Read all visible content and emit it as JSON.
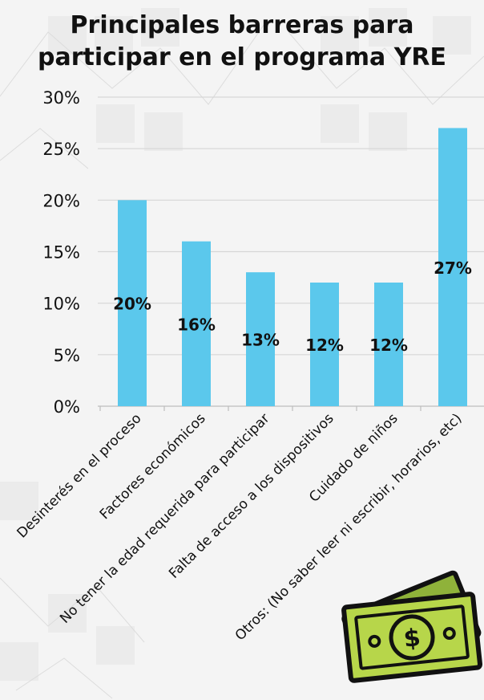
{
  "title_lines": [
    "Principales barreras para",
    "participar en el programa YRE"
  ],
  "colors": {
    "bar": "#5bc8ec",
    "grid": "#d6d6d6",
    "text": "#111111",
    "money_light": "#b7d64a",
    "money_dark": "#8fb23a"
  },
  "icon": "money-bill-icon",
  "chart_data": {
    "type": "bar",
    "title": "Principales barreras para participar en el programa YRE",
    "categories": [
      "Desinterés en el proceso",
      "Factores económicos",
      "No tener la edad requerida para participar",
      "Falta de acceso a los dispositivos",
      "Cuidado de niños",
      "Otros: (No saber leer ni escribir, horarios, etc)"
    ],
    "values": [
      20,
      16,
      13,
      12,
      12,
      27
    ],
    "value_labels": [
      "20%",
      "16%",
      "13%",
      "12%",
      "12%",
      "27%"
    ],
    "yticks": [
      "0%",
      "5%",
      "10%",
      "15%",
      "20%",
      "25%",
      "30%"
    ],
    "ylim": [
      0,
      30
    ],
    "grid": true,
    "legend": "none"
  }
}
